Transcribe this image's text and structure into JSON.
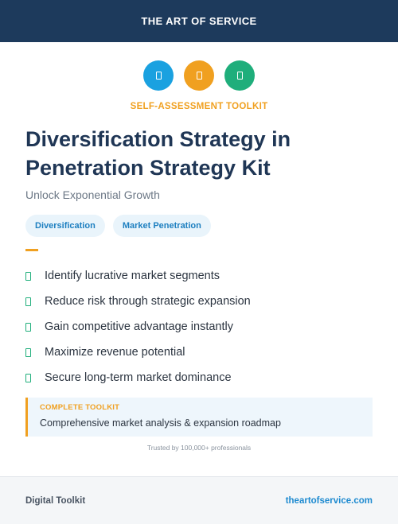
{
  "header": {
    "brand": "THE ART OF SERVICE"
  },
  "icons": [
    {
      "name": "blue-circle-icon",
      "color": "#1aa1e0"
    },
    {
      "name": "orange-circle-icon",
      "color": "#f0a020"
    },
    {
      "name": "green-circle-icon",
      "color": "#1fae7b"
    }
  ],
  "kicker": {
    "text": "SELF-ASSESSMENT TOOLKIT",
    "color": "#f0a020"
  },
  "title": "Diversification Strategy in Penetration Strategy Kit",
  "subtitle": "Unlock Exponential Growth",
  "tags": [
    "Diversification",
    "Market Penetration"
  ],
  "benefits": [
    "Identify lucrative market segments",
    "Reduce risk through strategic expansion",
    "Gain competitive advantage instantly",
    "Maximize revenue potential",
    "Secure long-term market dominance"
  ],
  "toolkit": {
    "label": "COMPLETE TOOLKIT",
    "text": "Comprehensive market analysis & expansion roadmap"
  },
  "trusted": "Trusted by 100,000+ professionals",
  "footer": {
    "left": "Digital Toolkit",
    "right": "theartofservice.com"
  }
}
